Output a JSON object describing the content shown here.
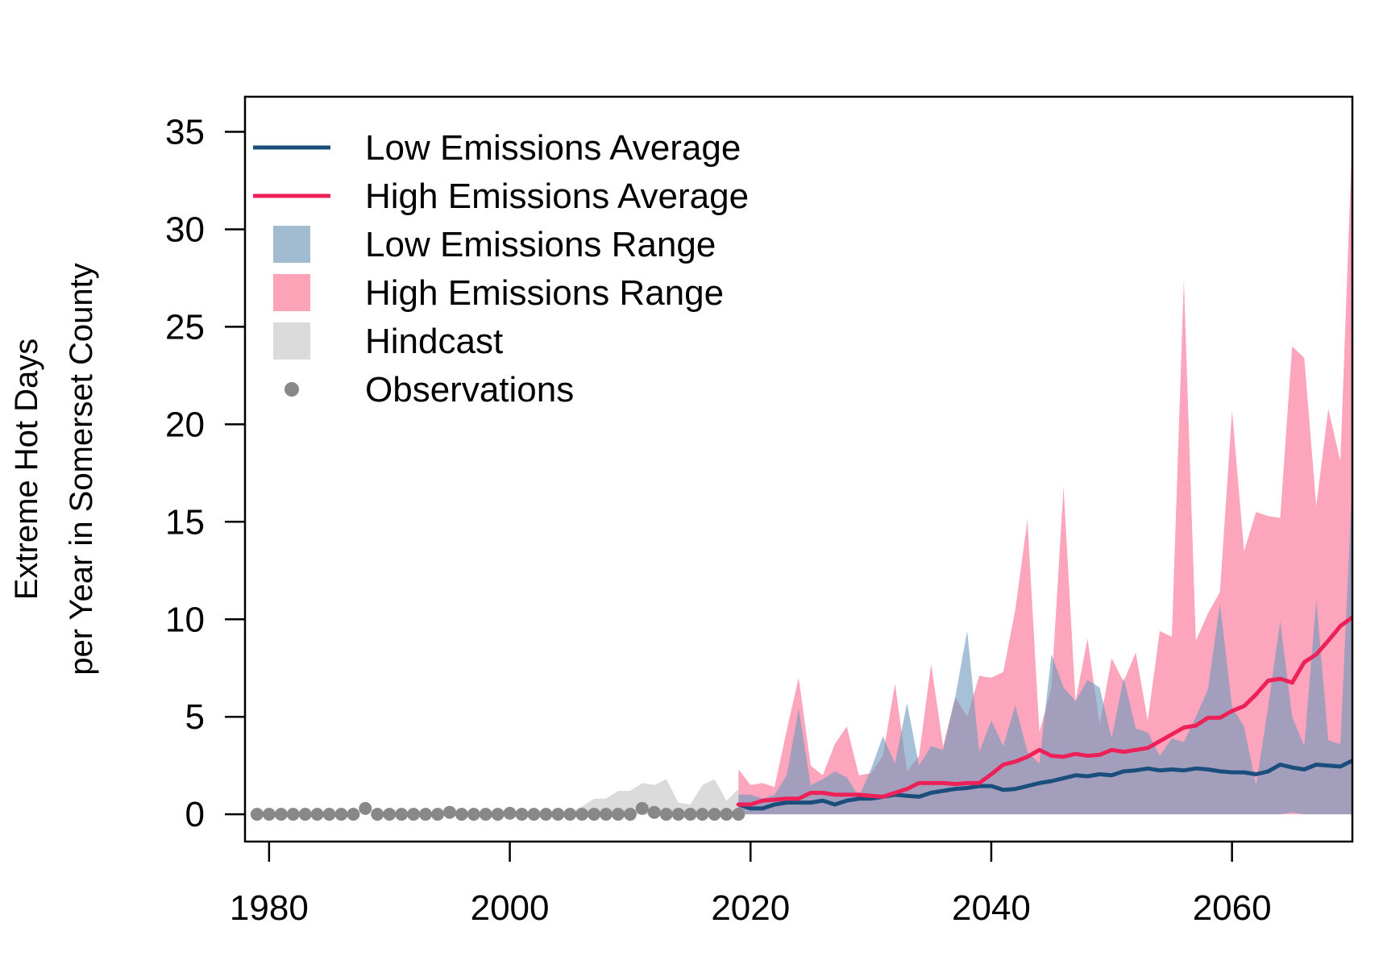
{
  "chart_data": {
    "type": "area",
    "title": "",
    "ylabel_lines": [
      "Extreme Hot Days",
      "per Year in Somerset County"
    ],
    "xlabel": "",
    "xlim": [
      1978,
      2070
    ],
    "ylim": [
      -1.4,
      36.8
    ],
    "xticks": [
      1980,
      2000,
      2020,
      2040,
      2060
    ],
    "yticks": [
      0,
      5,
      10,
      15,
      20,
      25,
      30,
      35
    ],
    "grid": false,
    "legend_position": "top-left",
    "legend": [
      {
        "label": "Low Emissions Average",
        "kind": "line",
        "color": "#1a4e7c"
      },
      {
        "label": "High Emissions Average",
        "kind": "line",
        "color": "#ee2058"
      },
      {
        "label": "Low Emissions Range",
        "kind": "box",
        "color": "#a1bbd1"
      },
      {
        "label": "High Emissions Range",
        "kind": "box",
        "color": "#fca3b8"
      },
      {
        "label": "Hindcast",
        "kind": "box",
        "color": "#dbdbdb"
      },
      {
        "label": "Observations",
        "kind": "point",
        "color": "#888888"
      }
    ],
    "colors": {
      "low_avg": "#1a4e7c",
      "high_avg": "#ee2058",
      "low_range": "#6e99bf",
      "high_range": "#fb82a2",
      "overlap": "#9e86a6",
      "hindcast": "#dbdbdb",
      "observations": "#888888"
    },
    "observations": {
      "x": [
        1979,
        1980,
        1981,
        1982,
        1983,
        1984,
        1985,
        1986,
        1987,
        1988,
        1989,
        1990,
        1991,
        1992,
        1993,
        1994,
        1995,
        1996,
        1997,
        1998,
        1999,
        2000,
        2001,
        2002,
        2003,
        2004,
        2005,
        2006,
        2007,
        2008,
        2009,
        2010,
        2011,
        2012,
        2013,
        2014,
        2015,
        2016,
        2017,
        2018,
        2019
      ],
      "y": [
        0,
        0,
        0,
        0,
        0,
        0,
        0,
        0,
        0,
        0.3,
        0,
        0,
        0,
        0,
        0,
        0,
        0.1,
        0,
        0,
        0,
        0,
        0.05,
        0,
        0,
        0,
        0,
        0,
        0,
        0,
        0,
        0,
        0,
        0.3,
        0.1,
        0,
        0,
        0,
        0,
        0,
        0,
        0
      ]
    },
    "hindcast_range": {
      "x": [
        2005,
        2006,
        2007,
        2008,
        2009,
        2010,
        2011,
        2012,
        2013,
        2014,
        2015,
        2016,
        2017,
        2018,
        2019
      ],
      "lower": [
        0,
        0,
        0,
        0,
        0,
        0,
        0,
        0,
        0,
        0,
        0,
        0,
        0,
        0,
        0
      ],
      "upper": [
        0.1,
        0.4,
        0.8,
        0.8,
        1.2,
        1.2,
        1.6,
        1.5,
        1.8,
        0.6,
        0.5,
        1.5,
        1.8,
        0.7,
        1.3
      ]
    },
    "series": [
      {
        "name": "Low Emissions Average",
        "x": [
          2019,
          2020,
          2021,
          2022,
          2023,
          2024,
          2025,
          2026,
          2027,
          2028,
          2029,
          2030,
          2031,
          2032,
          2033,
          2034,
          2035,
          2036,
          2037,
          2038,
          2039,
          2040,
          2041,
          2042,
          2043,
          2044,
          2045,
          2046,
          2047,
          2048,
          2049,
          2050,
          2051,
          2052,
          2053,
          2054,
          2055,
          2056,
          2057,
          2058,
          2059,
          2060,
          2061,
          2062,
          2063,
          2064,
          2065,
          2066,
          2067,
          2068,
          2069,
          2070
        ],
        "values": [
          0.5,
          0.3,
          0.3,
          0.5,
          0.6,
          0.6,
          0.6,
          0.7,
          0.5,
          0.7,
          0.8,
          0.8,
          0.9,
          1.0,
          0.95,
          0.9,
          1.1,
          1.2,
          1.3,
          1.35,
          1.45,
          1.45,
          1.25,
          1.3,
          1.45,
          1.6,
          1.7,
          1.85,
          2.0,
          1.95,
          2.05,
          2.0,
          2.2,
          2.25,
          2.35,
          2.25,
          2.3,
          2.25,
          2.35,
          2.3,
          2.2,
          2.15,
          2.15,
          2.05,
          2.2,
          2.55,
          2.4,
          2.3,
          2.55,
          2.5,
          2.45,
          2.75
        ]
      },
      {
        "name": "High Emissions Average",
        "x": [
          2019,
          2020,
          2021,
          2022,
          2023,
          2024,
          2025,
          2026,
          2027,
          2028,
          2029,
          2030,
          2031,
          2032,
          2033,
          2034,
          2035,
          2036,
          2037,
          2038,
          2039,
          2040,
          2041,
          2042,
          2043,
          2044,
          2045,
          2046,
          2047,
          2048,
          2049,
          2050,
          2051,
          2052,
          2053,
          2054,
          2055,
          2056,
          2057,
          2058,
          2059,
          2060,
          2061,
          2062,
          2063,
          2064,
          2065,
          2066,
          2067,
          2068,
          2069,
          2070
        ],
        "values": [
          0.5,
          0.5,
          0.7,
          0.75,
          0.8,
          0.8,
          1.1,
          1.1,
          1.0,
          1.0,
          1.0,
          0.95,
          0.9,
          1.1,
          1.3,
          1.6,
          1.6,
          1.6,
          1.55,
          1.6,
          1.6,
          2.05,
          2.55,
          2.7,
          2.95,
          3.3,
          3.0,
          2.95,
          3.1,
          3.0,
          3.05,
          3.3,
          3.2,
          3.3,
          3.4,
          3.75,
          4.1,
          4.45,
          4.55,
          4.95,
          4.95,
          5.3,
          5.55,
          6.15,
          6.85,
          6.95,
          6.75,
          7.8,
          8.2,
          8.9,
          9.65,
          10.1
        ]
      }
    ],
    "ranges": [
      {
        "name": "High Emissions Range",
        "x": [
          2019,
          2020,
          2021,
          2022,
          2023,
          2024,
          2025,
          2026,
          2027,
          2028,
          2029,
          2030,
          2031,
          2032,
          2033,
          2034,
          2035,
          2036,
          2037,
          2038,
          2039,
          2040,
          2041,
          2042,
          2043,
          2044,
          2045,
          2046,
          2047,
          2048,
          2049,
          2050,
          2051,
          2052,
          2053,
          2054,
          2055,
          2056,
          2057,
          2058,
          2059,
          2060,
          2061,
          2062,
          2063,
          2064,
          2065,
          2066,
          2067,
          2068,
          2069,
          2070
        ],
        "lower": [
          0,
          0,
          0,
          0,
          0,
          0,
          0,
          0,
          0,
          0,
          0,
          0,
          0,
          0,
          0,
          0,
          0,
          0,
          0,
          0,
          0,
          0,
          0,
          0,
          0,
          0,
          0,
          0,
          0,
          0,
          0,
          0,
          0,
          0,
          0,
          0,
          0,
          0,
          0,
          0,
          0,
          0,
          0,
          0,
          0,
          0,
          0,
          0,
          0,
          0,
          0,
          0
        ],
        "upper": [
          2.3,
          1.5,
          1.6,
          1.4,
          4.3,
          7.0,
          2.5,
          2.0,
          3.6,
          4.5,
          2.0,
          2.1,
          3.0,
          6.7,
          2.2,
          3.0,
          7.7,
          3.5,
          6.0,
          5.0,
          7.1,
          7.0,
          7.3,
          10.5,
          15.1,
          4.2,
          6.5,
          16.8,
          5.8,
          9.0,
          4.6,
          8.0,
          6.8,
          8.3,
          4.8,
          9.4,
          9.1,
          27.4,
          8.9,
          10.3,
          11.4,
          20.7,
          13.5,
          15.5,
          15.3,
          15.2,
          24.0,
          23.4,
          15.8,
          20.8,
          18.1,
          34.9
        ]
      },
      {
        "name": "Low Emissions Range",
        "x": [
          2019,
          2020,
          2021,
          2022,
          2023,
          2024,
          2025,
          2026,
          2027,
          2028,
          2029,
          2030,
          2031,
          2032,
          2033,
          2034,
          2035,
          2036,
          2037,
          2038,
          2039,
          2040,
          2041,
          2042,
          2043,
          2044,
          2045,
          2046,
          2047,
          2048,
          2049,
          2050,
          2051,
          2052,
          2053,
          2054,
          2055,
          2056,
          2057,
          2058,
          2059,
          2060,
          2061,
          2062,
          2063,
          2064,
          2065,
          2066,
          2067,
          2068,
          2069,
          2070
        ],
        "lower": [
          0,
          0,
          0,
          0,
          0,
          0,
          0,
          0,
          0,
          0,
          0,
          0,
          0,
          0,
          0,
          0,
          0,
          0,
          0,
          0,
          0,
          0,
          0,
          0,
          0,
          0,
          0,
          0,
          0,
          0,
          0,
          0,
          0,
          0,
          0,
          0,
          0,
          0,
          0,
          0,
          0,
          0,
          0,
          0,
          0,
          0,
          0.1,
          0,
          0,
          0,
          0,
          0
        ],
        "upper": [
          1.0,
          1.0,
          0.8,
          1.0,
          2.0,
          5.4,
          1.5,
          1.8,
          2.2,
          1.9,
          0.9,
          2.3,
          4.0,
          2.6,
          5.7,
          2.5,
          3.5,
          3.3,
          6.0,
          9.4,
          3.2,
          4.8,
          3.5,
          5.6,
          3.2,
          2.6,
          8.2,
          6.5,
          5.8,
          6.9,
          6.5,
          3.9,
          7.0,
          4.4,
          4.2,
          3.0,
          3.9,
          3.7,
          5.0,
          6.4,
          10.8,
          5.5,
          4.5,
          1.5,
          5.5,
          9.9,
          5.0,
          3.5,
          11.0,
          3.8,
          3.6,
          17.2
        ]
      }
    ]
  }
}
